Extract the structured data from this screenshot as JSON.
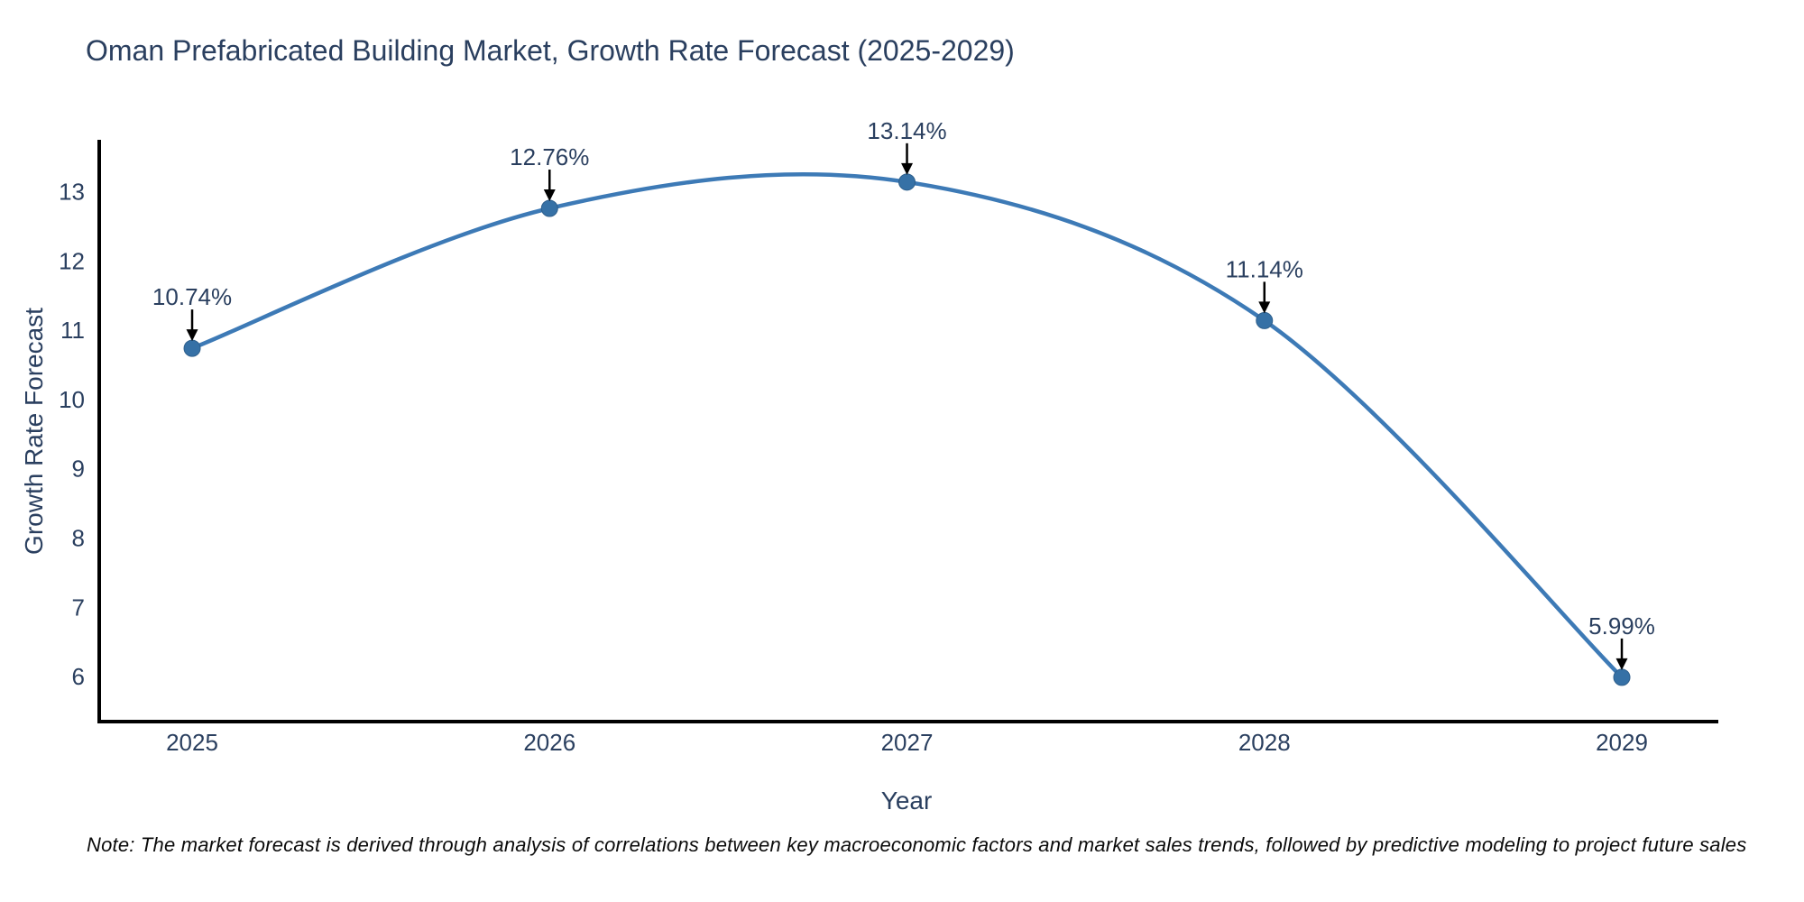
{
  "title": "Oman Prefabricated Building Market, Growth Rate Forecast (2025-2029)",
  "note": "Note: The market forecast is derived through analysis of correlations between key macroeconomic factors and market sales trends, followed by predictive modeling to project future sales",
  "chart_data": {
    "type": "line",
    "title": "Oman Prefabricated Building Market, Growth Rate Forecast (2025-2029)",
    "xlabel": "Year",
    "ylabel": "Growth Rate Forecast",
    "x": [
      2025,
      2026,
      2027,
      2028,
      2029
    ],
    "values": [
      10.74,
      12.76,
      13.14,
      11.14,
      5.99
    ],
    "point_labels": [
      "10.74%",
      "12.76%",
      "13.14%",
      "11.14%",
      "5.99%"
    ],
    "yticks": [
      6,
      7,
      8,
      9,
      10,
      11,
      12,
      13
    ],
    "xticks": [
      2025,
      2026,
      2027,
      2028,
      2029
    ],
    "xlim": [
      2024.74,
      2029.27
    ],
    "ylim": [
      5.35,
      13.75
    ],
    "line_shape": "spline",
    "grid": false,
    "legend_position": "none",
    "line_color": "#3d7ab6",
    "marker_color": "#3671a6",
    "marker_stroke": "#2e5f8c",
    "axis_color": "#000000",
    "text_color": "#2a3f5f",
    "annotation_color": "#2a3f5f",
    "arrow_color": "#000000",
    "background_color": "#ffffff"
  }
}
